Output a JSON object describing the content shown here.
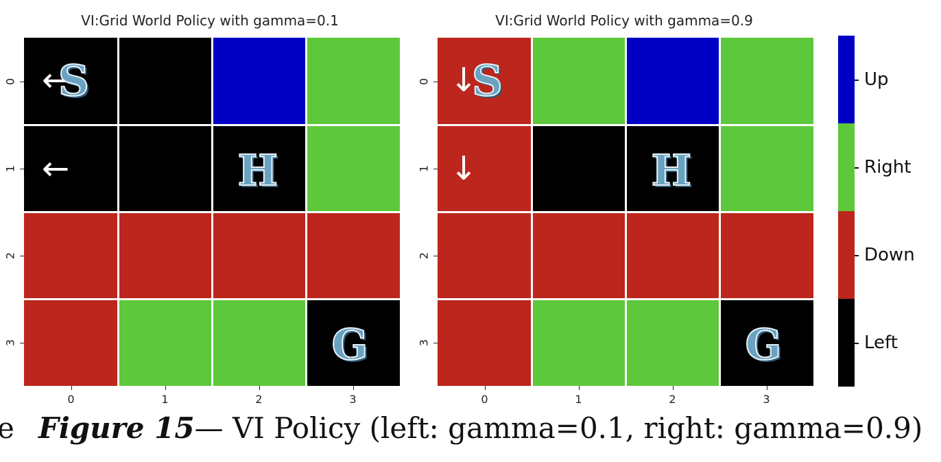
{
  "chart_data": [
    {
      "type": "heatmap",
      "title": "VI:Grid World Policy with gamma=0.1",
      "row_labels": [
        "0",
        "1",
        "2",
        "3"
      ],
      "col_labels": [
        "0",
        "1",
        "2",
        "3"
      ],
      "values": [
        [
          "Left",
          "Left",
          "Up",
          "Right"
        ],
        [
          "Left",
          "Left",
          "Left",
          "Right"
        ],
        [
          "Down",
          "Down",
          "Down",
          "Down"
        ],
        [
          "Down",
          "Right",
          "Right",
          "Left"
        ]
      ],
      "cell_labels": [
        [
          "S",
          "",
          "",
          ""
        ],
        [
          "",
          "",
          "H",
          ""
        ],
        [
          "",
          "",
          "",
          ""
        ],
        [
          "",
          "",
          "",
          "G"
        ]
      ],
      "arrows": [
        [
          "←",
          "",
          "",
          ""
        ],
        [
          "←",
          "",
          "",
          ""
        ],
        [
          "",
          "",
          "",
          ""
        ],
        [
          "",
          "",
          "",
          ""
        ]
      ]
    },
    {
      "type": "heatmap",
      "title": "VI:Grid World Policy with gamma=0.9",
      "row_labels": [
        "0",
        "1",
        "2",
        "3"
      ],
      "col_labels": [
        "0",
        "1",
        "2",
        "3"
      ],
      "values": [
        [
          "Down",
          "Right",
          "Up",
          "Right"
        ],
        [
          "Down",
          "Left",
          "Left",
          "Right"
        ],
        [
          "Down",
          "Down",
          "Down",
          "Down"
        ],
        [
          "Down",
          "Right",
          "Right",
          "Left"
        ]
      ],
      "cell_labels": [
        [
          "S",
          "",
          "",
          ""
        ],
        [
          "",
          "",
          "H",
          ""
        ],
        [
          "",
          "",
          "",
          ""
        ],
        [
          "",
          "",
          "",
          "G"
        ]
      ],
      "arrows": [
        [
          "↓",
          "",
          "",
          ""
        ],
        [
          "↓",
          "",
          "",
          ""
        ],
        [
          "",
          "",
          "",
          ""
        ],
        [
          "",
          "",
          "",
          ""
        ]
      ]
    }
  ],
  "colorbar": {
    "labels": [
      "Up",
      "Right",
      "Down",
      "Left"
    ],
    "colors": {
      "Up": "#0000c4",
      "Right": "#5ec83c",
      "Down": "#bc261c",
      "Left": "#000000"
    }
  },
  "caption": {
    "lead": "e",
    "figure": "Figure 15",
    "dash": "—",
    "text": " VI Policy (left: gamma=0.1, right: gamma=0.9)"
  }
}
